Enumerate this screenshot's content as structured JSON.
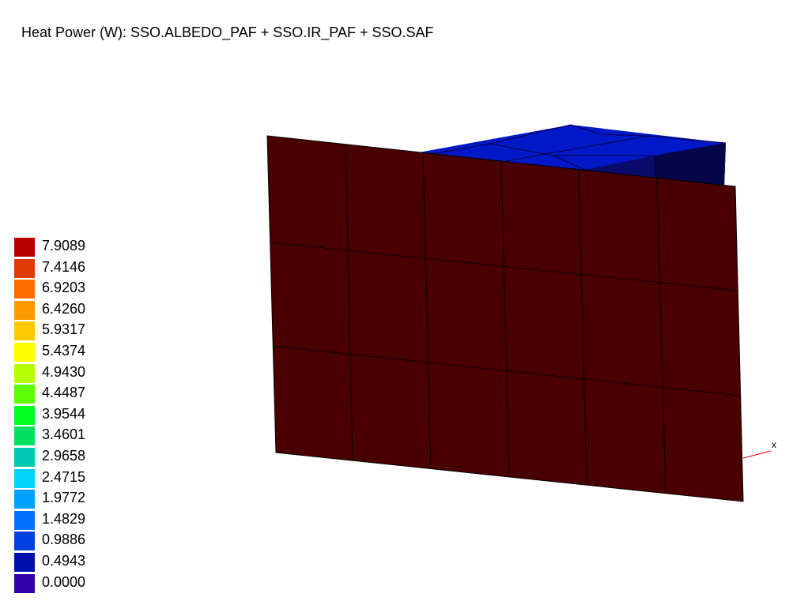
{
  "title": "Heat Power (W): SSO.ALBEDO_PAF + SSO.IR_PAF + SSO.SAF",
  "legend": {
    "entries": [
      {
        "label": "7.9089",
        "color": "#b80000"
      },
      {
        "label": "7.4146",
        "color": "#e03a00"
      },
      {
        "label": "6.9203",
        "color": "#ff6a00"
      },
      {
        "label": "6.4260",
        "color": "#ff9900"
      },
      {
        "label": "5.9317",
        "color": "#ffc800"
      },
      {
        "label": "5.4374",
        "color": "#ffff00"
      },
      {
        "label": "4.9430",
        "color": "#b6ff00"
      },
      {
        "label": "4.4487",
        "color": "#5cff00"
      },
      {
        "label": "3.9544",
        "color": "#00ff1e"
      },
      {
        "label": "3.4601",
        "color": "#00e060"
      },
      {
        "label": "2.9658",
        "color": "#00c8b0"
      },
      {
        "label": "2.4715",
        "color": "#00d4ff"
      },
      {
        "label": "1.9772",
        "color": "#00a0ff"
      },
      {
        "label": "1.4829",
        "color": "#0070ff"
      },
      {
        "label": "0.9886",
        "color": "#0040e0"
      },
      {
        "label": "0.4943",
        "color": "#0010b0"
      },
      {
        "label": "0.0000",
        "color": "#3300aa"
      }
    ]
  },
  "model": {
    "panel_color": "#4a0000",
    "top_color": "#0018c8",
    "top_side_color": "#0a0a6a",
    "top_side_dark_color": "#05054a",
    "edge_color": "#000000"
  },
  "axis": {
    "x_label": "x",
    "x_color": "#ff0000"
  }
}
